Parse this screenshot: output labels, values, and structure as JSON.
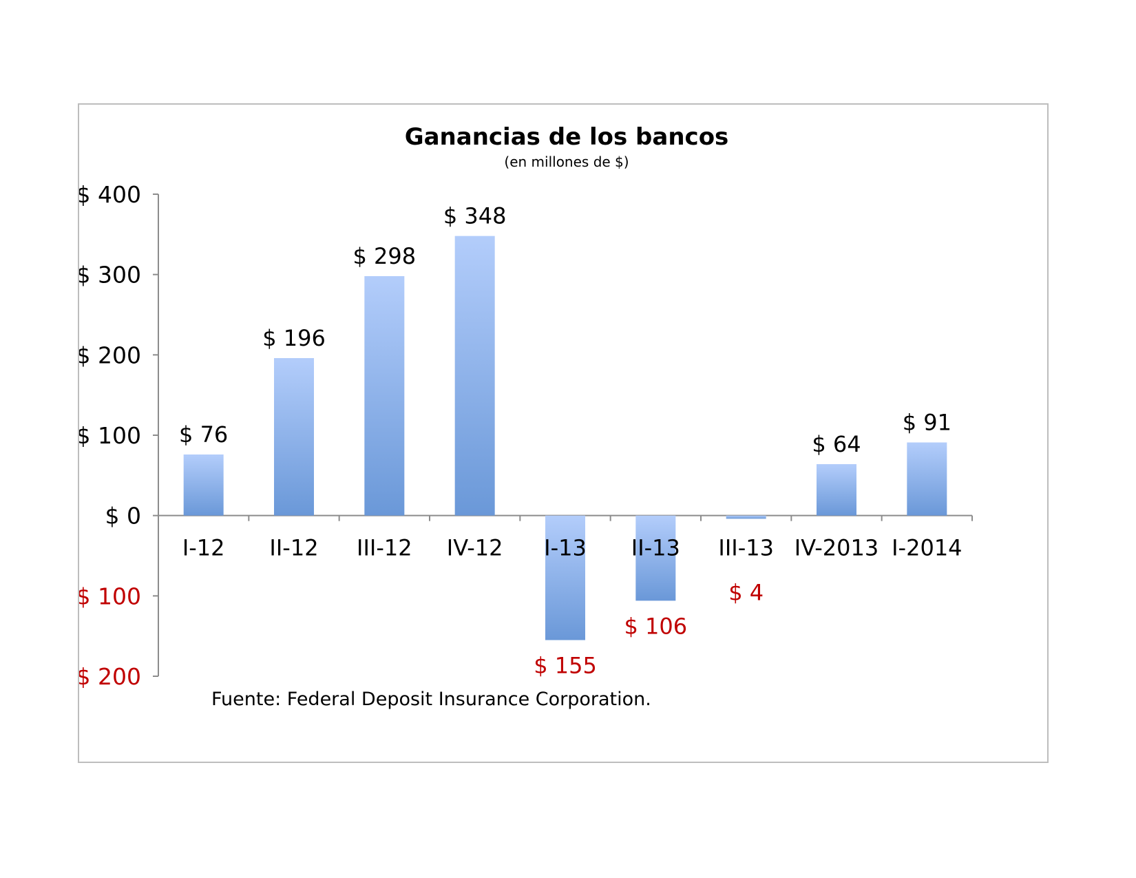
{
  "chart_data": {
    "type": "bar",
    "title": "Ganancias de los bancos",
    "subtitle": "(en millones de $)",
    "categories": [
      "I-12",
      "II-12",
      "III-12",
      "IV-12",
      "I-13",
      "II-13",
      "III-13",
      "IV-2013",
      "I-2014"
    ],
    "values": [
      76,
      196,
      298,
      348,
      -155,
      -106,
      -4,
      64,
      91
    ],
    "data_labels": [
      "$ 76",
      "$ 196",
      "$ 298",
      "$ 348",
      "$ 155",
      "$ 106",
      "$ 4",
      "$ 64",
      "$ 91"
    ],
    "ylim": [
      -200,
      400
    ],
    "y_ticks": [
      400,
      300,
      200,
      100,
      0,
      -100,
      -200
    ],
    "y_tick_labels": [
      "$ 400",
      "$ 300",
      "$ 200",
      "$ 100",
      "$ 0",
      "$ 100",
      "$ 200"
    ],
    "grid": false,
    "legend": "none",
    "source": "Fuente: Federal Deposit Insurance Corporation.",
    "colors": {
      "bar_top": "#b3cdfb",
      "bar_bottom": "#6a98d8",
      "negative_text": "#c00000",
      "positive_text": "#000000",
      "axis": "#8c8c8c"
    }
  }
}
